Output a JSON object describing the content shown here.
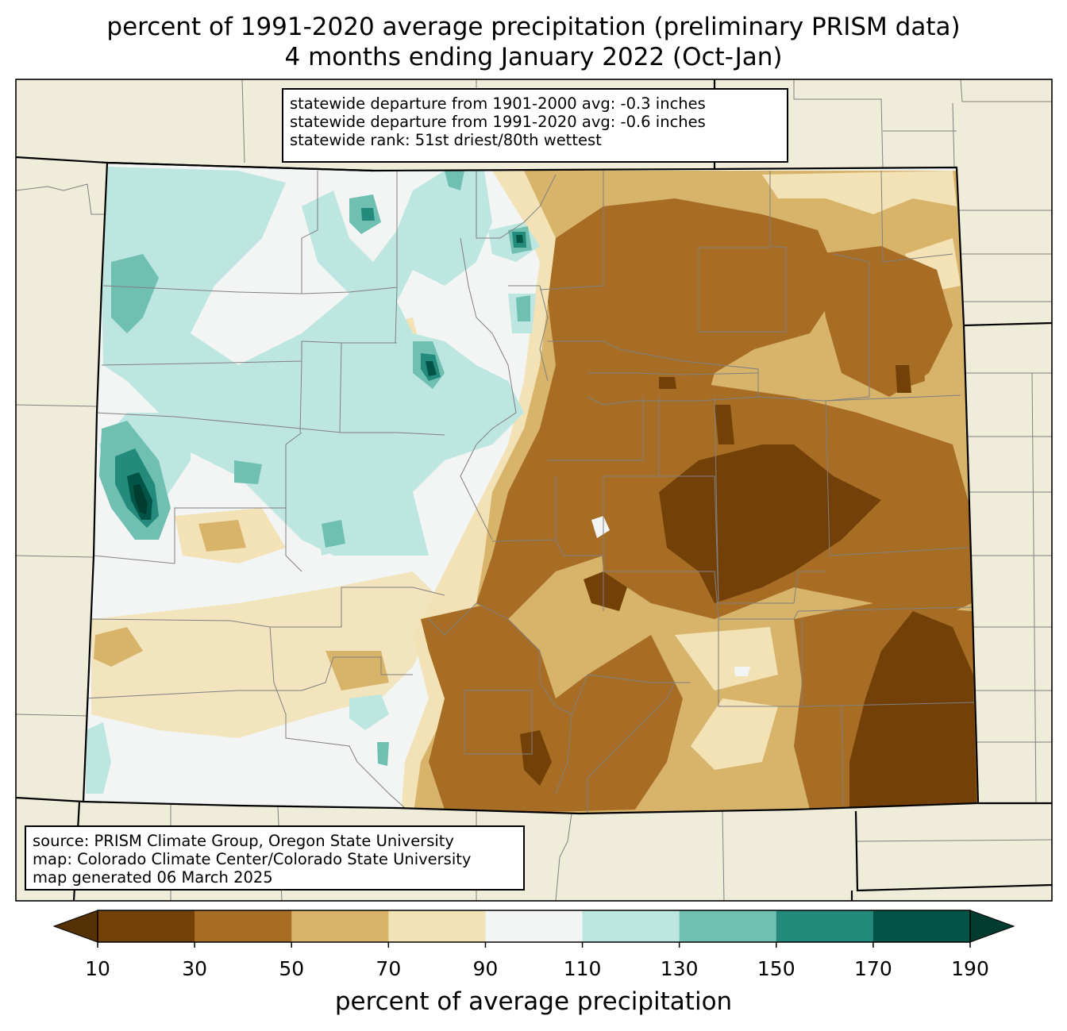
{
  "title": {
    "line1": "percent of 1991-2020 average precipitation (preliminary PRISM data)",
    "line2": "4 months ending January 2022 (Oct-Jan)"
  },
  "stats_box": {
    "line1": "statewide departure from 1901-2000 avg: -0.3 inches",
    "line2": "statewide departure from 1991-2020 avg: -0.6 inches",
    "line3": "statewide rank: 51st driest/80th wettest"
  },
  "source_box": {
    "line1": "source: PRISM Climate Group, Oregon State University",
    "line2": "map: Colorado Climate Center/Colorado State University",
    "line3": "map generated 06 March 2025"
  },
  "colorbar": {
    "label": "percent of average precipitation",
    "ticks": [
      "10",
      "30",
      "50",
      "70",
      "90",
      "110",
      "130",
      "150",
      "170",
      "190"
    ],
    "colors": [
      "#734108",
      "#a86d24",
      "#d8b36a",
      "#f2e2b6",
      "#f3f5f4",
      "#bde6e0",
      "#70c0b2",
      "#238a7c",
      "#025446"
    ],
    "under_color": "#543005",
    "over_color": "#003c30"
  },
  "colors": {
    "background_land": "#efedd9",
    "state_border": "#000000",
    "county_lines": "#808080"
  }
}
